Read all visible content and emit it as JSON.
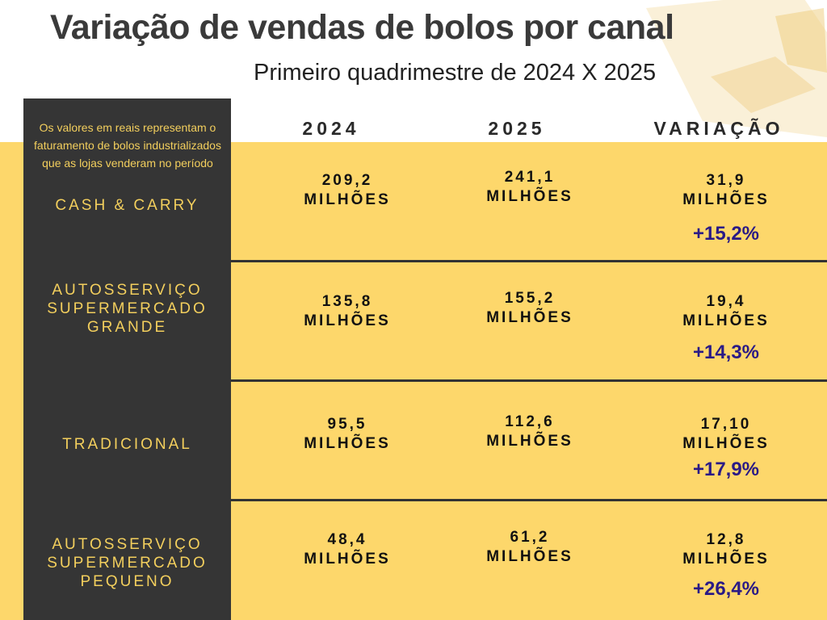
{
  "header": {
    "title": "Variação de vendas  de bolos por canal",
    "subtitle": "Primeiro quadrimestre de 2024 X 2025"
  },
  "sidebar": {
    "note": "Os valores em reais representam o  faturamento de bolos industrializados que as lojas venderam no período"
  },
  "columns": [
    "2024",
    "2025",
    "VARIAÇÃO"
  ],
  "unit": "MILHÕES",
  "rows": [
    {
      "channel": [
        "CASH & CARRY"
      ],
      "v2024": "209,2",
      "v2025": "241,1",
      "variation": "31,9",
      "percent": "+15,2%"
    },
    {
      "channel": [
        "AUTOSSERVIÇO",
        "SUPERMERCADO",
        "GRANDE"
      ],
      "v2024": "135,8",
      "v2025": "155,2",
      "variation": "19,4",
      "percent": "+14,3%"
    },
    {
      "channel": [
        "TRADICIONAL"
      ],
      "v2024": "95,5",
      "v2025": "112,6",
      "variation": "17,10",
      "percent": "+17,9%"
    },
    {
      "channel": [
        "AUTOSSERVIÇO",
        "SUPERMERCADO",
        "PEQUENO"
      ],
      "v2024": "48,4",
      "v2025": "61,2",
      "variation": "12,8",
      "percent": "+26,4%"
    }
  ],
  "colors": {
    "background": "#fdd76b",
    "sidebar": "#353535",
    "sidebar_text": "#f3cf5d",
    "percent": "#2a1a86"
  }
}
